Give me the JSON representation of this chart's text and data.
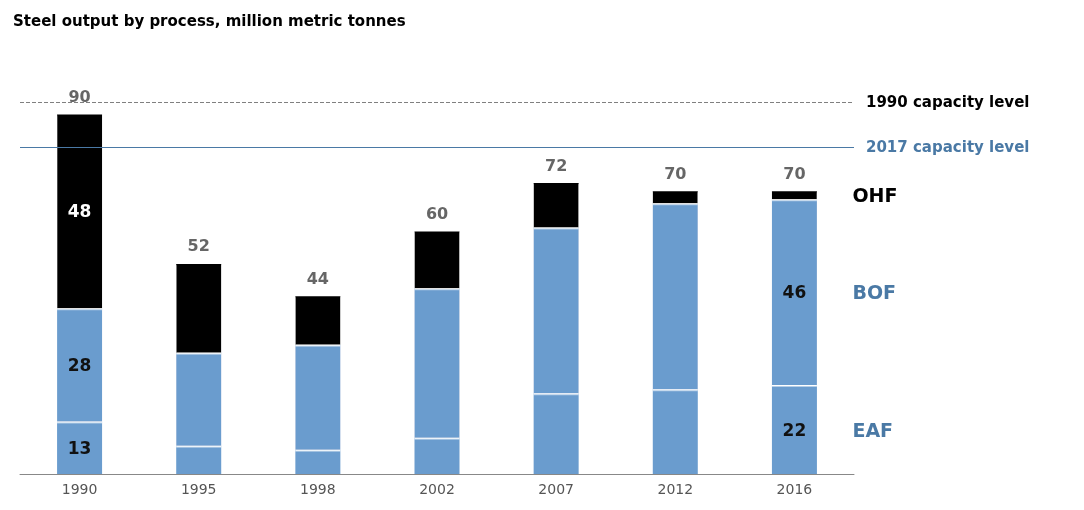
{
  "chart_data": {
    "type": "bar",
    "title": "Steel output by process, million metric tonnes",
    "categories": [
      "1990",
      "1995",
      "1998",
      "2002",
      "2007",
      "2012",
      "2016"
    ],
    "stacked": true,
    "tick_labels": "x",
    "series": [
      {
        "name": "EAF",
        "color": "#6a9cce",
        "values": [
          13,
          7,
          6,
          9,
          20,
          21,
          22
        ],
        "value_labels": [
          "13",
          null,
          null,
          null,
          null,
          null,
          "22"
        ]
      },
      {
        "name": "BOF",
        "color": "#6a9cce",
        "values": [
          28,
          23,
          26,
          37,
          41,
          46,
          46
        ],
        "value_labels": [
          "28",
          null,
          null,
          null,
          null,
          null,
          "46"
        ]
      },
      {
        "name": "OHF",
        "color": "#000000",
        "values": [
          48,
          22,
          12,
          14,
          11,
          3,
          2
        ],
        "value_labels": [
          "48",
          null,
          null,
          null,
          null,
          null,
          null
        ]
      }
    ],
    "totals": [
      "90",
      "52",
      "44",
      "60",
      "72",
      "70",
      "70"
    ],
    "ref_lines": [
      {
        "axis": "y",
        "value": 92,
        "label": "1990 capacity level",
        "color": "#808080",
        "line_style": "dashed"
      },
      {
        "axis": "y",
        "value": 81,
        "label": "2017 capacity level",
        "color": "#4a79a5",
        "line_style": "solid"
      }
    ]
  }
}
